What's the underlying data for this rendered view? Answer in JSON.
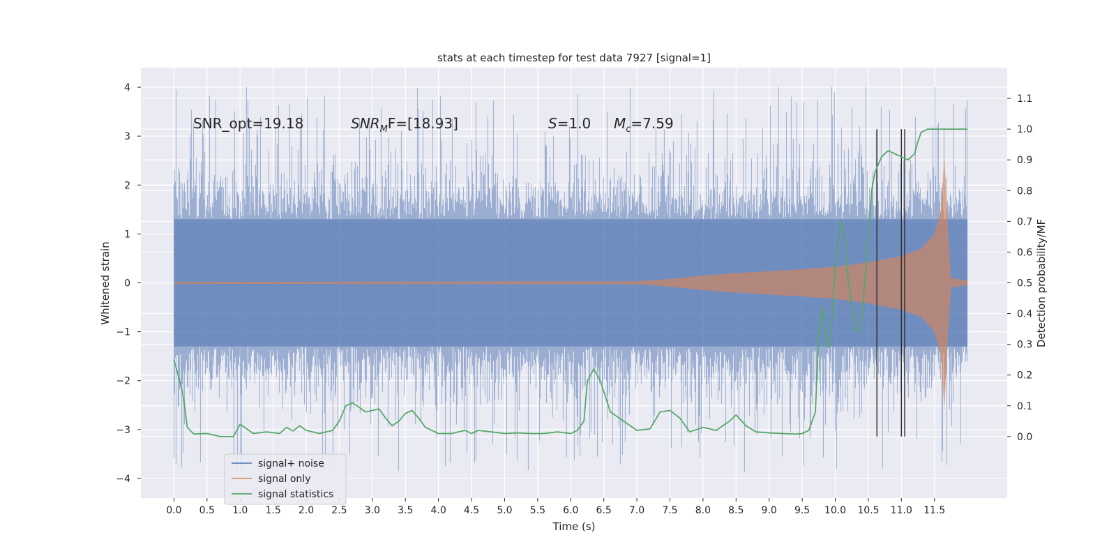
{
  "chart_data": {
    "type": "line",
    "title": "stats at each timestep for test data 7927 [signal=1]",
    "xlabel": "Time (s)",
    "ylabel_left": "Whitened strain",
    "ylabel_right": "Detection probability/MF",
    "xlim": [
      -0.5,
      12.6
    ],
    "ylim_left": [
      -4.4,
      4.4
    ],
    "ylim_right": [
      -0.2,
      1.2
    ],
    "x_ticks": [
      0.0,
      0.5,
      1.0,
      1.5,
      2.0,
      2.5,
      3.0,
      3.5,
      4.0,
      4.5,
      5.0,
      5.5,
      6.0,
      6.5,
      7.0,
      7.5,
      8.0,
      8.5,
      9.0,
      9.5,
      10.0,
      10.5,
      11.0,
      11.5
    ],
    "x_tick_labels": [
      "0.0",
      "0.5",
      "1.0",
      "1.5",
      "2.0",
      "2.5",
      "3.0",
      "3.5",
      "4.0",
      "4.5",
      "5.0",
      "5.5",
      "6.0",
      "6.5",
      "7.0",
      "7.5",
      "8.0",
      "8.5",
      "9.0",
      "9.5",
      "10.0",
      "10.5",
      "11.0",
      "11.5"
    ],
    "y_left_ticks": [
      -4,
      -3,
      -2,
      -1,
      0,
      1,
      2,
      3,
      4
    ],
    "y_left_tick_labels": [
      "−4",
      "−3",
      "−2",
      "−1",
      "0",
      "1",
      "2",
      "3",
      "4"
    ],
    "y_right_ticks": [
      0.0,
      0.1,
      0.2,
      0.3,
      0.4,
      0.5,
      0.6,
      0.7,
      0.8,
      0.9,
      1.0,
      1.1
    ],
    "y_right_tick_labels": [
      "0.0",
      "0.1",
      "0.2",
      "0.3",
      "0.4",
      "0.5",
      "0.6",
      "0.7",
      "0.8",
      "0.9",
      "1.0",
      "1.1"
    ],
    "grid": true,
    "legend_position": "bottom-left",
    "series": [
      {
        "name": "signal+ noise",
        "color": "#4c72b0",
        "axis": "left",
        "style": "dense-noise",
        "x_range": [
          0.0,
          12.0
        ],
        "core_amplitude": 1.3,
        "peak_amplitude": 4.0,
        "trough_amplitude": -3.9
      },
      {
        "name": "signal only",
        "color": "#dd8452",
        "axis": "left",
        "style": "chirp-envelope",
        "envelope": {
          "x": [
            0.0,
            7.0,
            7.5,
            8.0,
            8.5,
            9.0,
            9.5,
            10.0,
            10.5,
            11.0,
            11.3,
            11.5,
            11.6,
            11.65,
            11.7,
            11.75,
            12.0
          ],
          "y": [
            0.02,
            0.03,
            0.08,
            0.15,
            0.2,
            0.24,
            0.28,
            0.33,
            0.42,
            0.55,
            0.7,
            1.0,
            1.5,
            2.6,
            1.2,
            0.1,
            0.05
          ]
        }
      },
      {
        "name": "signal statistics",
        "color": "#55a868",
        "axis": "right",
        "style": "line",
        "x": [
          0.0,
          0.1,
          0.15,
          0.2,
          0.3,
          0.5,
          0.7,
          0.9,
          1.0,
          1.1,
          1.2,
          1.4,
          1.6,
          1.7,
          1.8,
          1.9,
          2.0,
          2.2,
          2.4,
          2.5,
          2.6,
          2.7,
          2.8,
          2.9,
          3.1,
          3.2,
          3.3,
          3.4,
          3.5,
          3.6,
          3.7,
          3.8,
          4.0,
          4.2,
          4.3,
          4.4,
          4.5,
          4.6,
          4.8,
          5.0,
          5.2,
          5.4,
          5.6,
          5.8,
          6.0,
          6.1,
          6.2,
          6.25,
          6.35,
          6.45,
          6.6,
          6.8,
          7.0,
          7.2,
          7.35,
          7.5,
          7.65,
          7.8,
          8.0,
          8.2,
          8.4,
          8.5,
          8.65,
          8.8,
          9.0,
          9.2,
          9.4,
          9.5,
          9.6,
          9.7,
          9.75,
          9.8,
          9.85,
          9.9,
          9.95,
          10.0,
          10.05,
          10.1,
          10.15,
          10.2,
          10.3,
          10.35,
          10.4,
          10.5,
          10.55,
          10.6,
          10.7,
          10.8,
          10.9,
          11.0,
          11.1,
          11.2,
          11.25,
          11.3,
          11.4,
          11.5,
          11.6,
          11.7,
          11.8,
          11.9,
          12.0
        ],
        "y": [
          0.25,
          0.17,
          0.12,
          0.03,
          0.008,
          0.01,
          0.0,
          0.0,
          0.04,
          0.025,
          0.01,
          0.015,
          0.01,
          0.03,
          0.018,
          0.035,
          0.02,
          0.01,
          0.02,
          0.05,
          0.1,
          0.11,
          0.095,
          0.08,
          0.09,
          0.06,
          0.035,
          0.05,
          0.075,
          0.085,
          0.06,
          0.03,
          0.01,
          0.01,
          0.015,
          0.02,
          0.01,
          0.02,
          0.015,
          0.01,
          0.012,
          0.01,
          0.01,
          0.015,
          0.01,
          0.02,
          0.05,
          0.18,
          0.22,
          0.18,
          0.08,
          0.05,
          0.02,
          0.025,
          0.08,
          0.085,
          0.06,
          0.015,
          0.03,
          0.02,
          0.05,
          0.07,
          0.035,
          0.015,
          0.012,
          0.01,
          0.008,
          0.01,
          0.02,
          0.08,
          0.35,
          0.42,
          0.33,
          0.29,
          0.38,
          0.55,
          0.66,
          0.7,
          0.62,
          0.5,
          0.35,
          0.34,
          0.38,
          0.65,
          0.8,
          0.86,
          0.91,
          0.93,
          0.92,
          0.91,
          0.9,
          0.92,
          0.96,
          0.99,
          1.0,
          1.0,
          1.0,
          1.0,
          1.0,
          1.0,
          1.0
        ]
      }
    ],
    "vertical_markers": {
      "color": "#2b2b2b",
      "x": [
        10.63,
        11.0,
        11.05
      ],
      "y_top_right": 1.0,
      "y_bottom_right": 0.0
    },
    "annotations": [
      {
        "text": "SNR_opt=19.18",
        "x": 0.2,
        "y": 3.3,
        "kind": "plain"
      },
      {
        "text": "SNR_MF=[18.93]",
        "base": "SNR",
        "sub": "M",
        "rest": "F=[18.93]",
        "x": 2.6,
        "y": 3.3,
        "kind": "math"
      },
      {
        "text": "S=1.0",
        "base": "S",
        "rest": "=1.0",
        "x": 5.6,
        "y": 3.3,
        "kind": "math-italic"
      },
      {
        "text": "M_c=7.59",
        "base": "M",
        "sub": "c",
        "rest": "=7.59",
        "x": 6.6,
        "y": 3.3,
        "kind": "math"
      }
    ]
  }
}
